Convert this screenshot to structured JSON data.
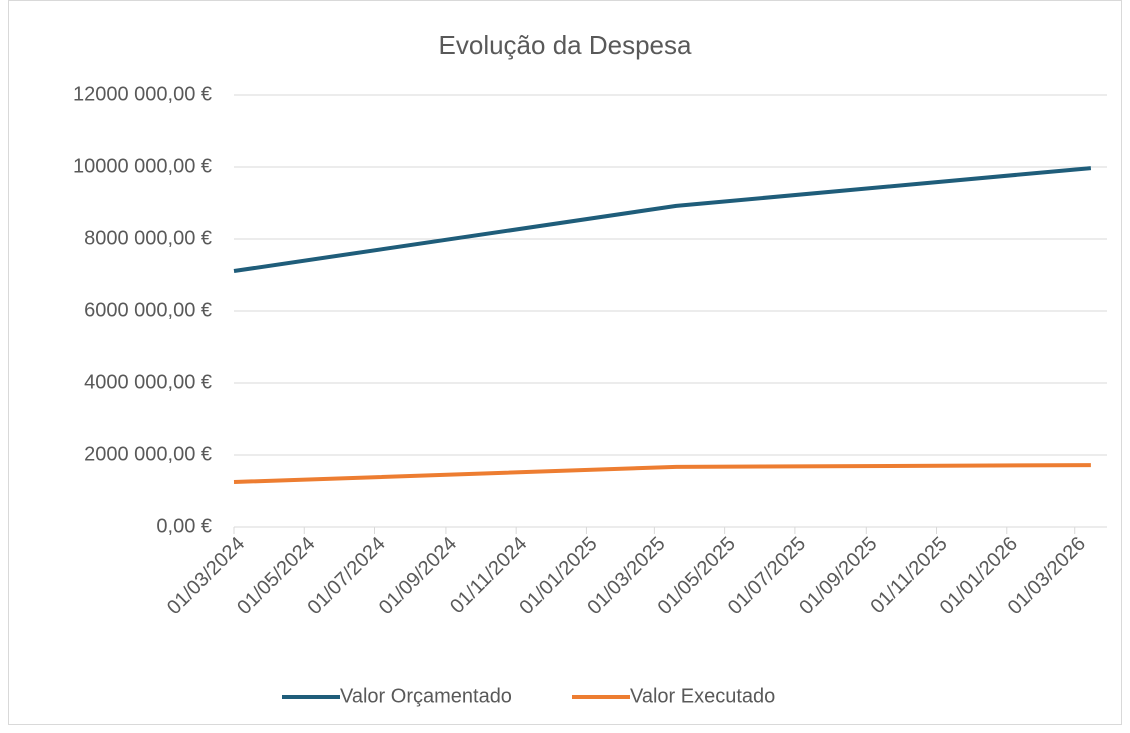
{
  "chart_data": {
    "type": "line",
    "title": "Evolução da Despesa",
    "x": [
      "01/03/2024",
      "20/03/2025",
      "15/03/2026"
    ],
    "series": [
      {
        "name": "Valor Orçamentado",
        "color": "#1f5d7a",
        "values": [
          7110000,
          8920000,
          9970000
        ]
      },
      {
        "name": "Valor Executado",
        "color": "#ed7d31",
        "values": [
          1250000,
          1670000,
          1720000
        ]
      }
    ],
    "xlim": [
      "01/03/2024",
      "29/03/2026"
    ],
    "xticks": [
      "01/03/2024",
      "01/05/2024",
      "01/07/2024",
      "01/09/2024",
      "01/11/2024",
      "01/01/2025",
      "01/03/2025",
      "01/05/2025",
      "01/07/2025",
      "01/09/2025",
      "01/11/2025",
      "01/01/2026",
      "01/03/2026"
    ],
    "ylim": [
      0,
      12000000
    ],
    "yticks": [
      {
        "value": 0,
        "label": "0,00 €"
      },
      {
        "value": 2000000,
        "label": "2000 000,00 €"
      },
      {
        "value": 4000000,
        "label": "4000 000,00 €"
      },
      {
        "value": 6000000,
        "label": "6000 000,00 €"
      },
      {
        "value": 8000000,
        "label": "8000 000,00 €"
      },
      {
        "value": 10000000,
        "label": "10000 000,00 €"
      },
      {
        "value": 12000000,
        "label": "12000 000,00 €"
      }
    ],
    "grid": true,
    "legend": "bottom"
  }
}
